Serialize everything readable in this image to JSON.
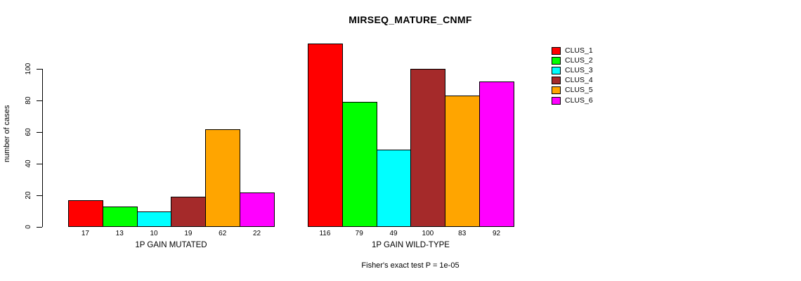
{
  "chart_data": {
    "type": "bar",
    "title": "MIRSEQ_MATURE_CNMF",
    "ylabel": "number of cases",
    "xlabel": "",
    "categories": [
      "1P GAIN MUTATED",
      "1P GAIN WILD-TYPE"
    ],
    "series": [
      {
        "name": "CLUS_1",
        "color": "#FF0000",
        "values": [
          17,
          116
        ]
      },
      {
        "name": "CLUS_2",
        "color": "#00FF00",
        "values": [
          13,
          79
        ]
      },
      {
        "name": "CLUS_3",
        "color": "#00FFFF",
        "values": [
          10,
          49
        ]
      },
      {
        "name": "CLUS_4",
        "color": "#A52A2A",
        "values": [
          19,
          100
        ]
      },
      {
        "name": "CLUS_5",
        "color": "#FFA500",
        "values": [
          62,
          83
        ]
      },
      {
        "name": "CLUS_6",
        "color": "#FF00FF",
        "values": [
          22,
          92
        ]
      }
    ],
    "yticks": [
      0,
      20,
      40,
      60,
      80,
      100
    ],
    "ylim": [
      0,
      100
    ],
    "grid": false,
    "bar_value_labels_shown": true,
    "legend_position": "right",
    "annotation": "Fisher's exact test P = 1e-05",
    "bar_border_color": "#000000",
    "background_color": "#FFFFFF"
  }
}
